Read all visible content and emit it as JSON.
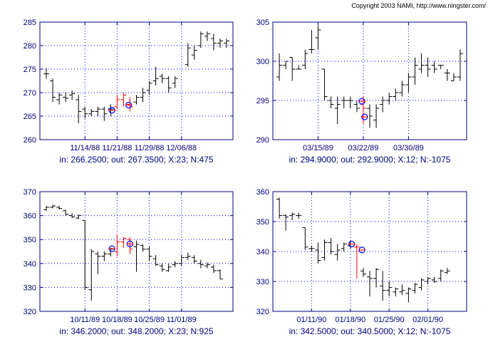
{
  "copyright": "Copyright 2003 NAMI, http://www.ningster.com/",
  "colors": {
    "axis": "#00007f",
    "grid": "#0000ff",
    "bar": "#000000",
    "trade": "#ff0000",
    "marker": "#0000ff"
  },
  "chart_data": [
    {
      "type": "ohlc",
      "caption": "in: 266.2500; out: 267.3500; X:23; N:475",
      "ylim": [
        260,
        285
      ],
      "yticks": [
        260,
        265,
        270,
        275,
        280,
        285
      ],
      "xlim": [
        0,
        30
      ],
      "xticks": [
        {
          "x": 7,
          "label": "11/14/88"
        },
        {
          "x": 12,
          "label": "11/21/88"
        },
        {
          "x": 17,
          "label": "11/29/88"
        },
        {
          "x": 22,
          "label": "12/06/88"
        }
      ],
      "grid": true,
      "bars": [
        {
          "x": 1,
          "h": 275.2,
          "l": 273.0,
          "o": 274.0,
          "c": 274.0
        },
        {
          "x": 2,
          "h": 273.0,
          "l": 268.0,
          "o": 272.5,
          "c": 269.0
        },
        {
          "x": 3,
          "h": 270.0,
          "l": 267.5,
          "o": 268.5,
          "c": 269.5
        },
        {
          "x": 4,
          "h": 270.0,
          "l": 268.0,
          "o": 269.0,
          "c": 268.8
        },
        {
          "x": 5,
          "h": 270.5,
          "l": 268.5,
          "o": 269.5,
          "c": 269.8
        },
        {
          "x": 6,
          "h": 269.5,
          "l": 263.5,
          "o": 268.5,
          "c": 266.0
        },
        {
          "x": 7,
          "h": 267.0,
          "l": 264.5,
          "o": 266.5,
          "c": 265.5
        },
        {
          "x": 8,
          "h": 266.5,
          "l": 265.0,
          "o": 265.5,
          "c": 266.0
        },
        {
          "x": 9,
          "h": 267.0,
          "l": 265.0,
          "o": 266.0,
          "c": 266.5
        },
        {
          "x": 10,
          "h": 267.0,
          "l": 264.0,
          "o": 266.5,
          "c": 265.5
        },
        {
          "x": 11,
          "h": 267.5,
          "l": 265.0,
          "o": 266.5,
          "c": 266.5
        },
        {
          "x": 12,
          "h": 269.5,
          "l": 266.5,
          "o": 267.0,
          "c": 268.5,
          "trade": true
        },
        {
          "x": 13,
          "h": 270.0,
          "l": 267.0,
          "o": 268.5,
          "c": 269.5,
          "trade": true
        },
        {
          "x": 14,
          "h": 269.0,
          "l": 266.0,
          "o": 267.5,
          "c": 267.0,
          "trade": true
        },
        {
          "x": 15,
          "h": 269.5,
          "l": 267.5,
          "o": 268.0,
          "c": 269.0
        },
        {
          "x": 16,
          "h": 271.0,
          "l": 268.0,
          "o": 269.0,
          "c": 270.0
        },
        {
          "x": 17,
          "h": 272.5,
          "l": 269.5,
          "o": 270.5,
          "c": 272.0
        },
        {
          "x": 18,
          "h": 275.5,
          "l": 271.5,
          "o": 272.5,
          "c": 273.0
        },
        {
          "x": 19,
          "h": 274.0,
          "l": 272.0,
          "o": 273.5,
          "c": 273.0
        },
        {
          "x": 20,
          "h": 273.5,
          "l": 270.0,
          "o": 273.0,
          "c": 271.0
        },
        {
          "x": 21,
          "h": 273.5,
          "l": 271.0,
          "o": 272.0,
          "c": 273.0
        },
        {
          "x": 23,
          "h": 280.5,
          "l": 275.5,
          "o": 276.0,
          "c": 279.5
        },
        {
          "x": 24,
          "h": 280.0,
          "l": 277.0,
          "o": 278.0,
          "c": 279.0
        },
        {
          "x": 25,
          "h": 283.0,
          "l": 279.5,
          "o": 280.0,
          "c": 282.5
        },
        {
          "x": 26,
          "h": 283.0,
          "l": 281.0,
          "o": 282.0,
          "c": 282.5
        },
        {
          "x": 27,
          "h": 282.5,
          "l": 279.0,
          "o": 281.5,
          "c": 280.5
        },
        {
          "x": 28,
          "h": 281.5,
          "l": 279.5,
          "o": 280.5,
          "c": 281.0
        },
        {
          "x": 29,
          "h": 281.5,
          "l": 279.5,
          "o": 280.5,
          "c": 281.0
        }
      ],
      "markers": [
        {
          "x": 11.2,
          "y": 266.25
        },
        {
          "x": 13.8,
          "y": 267.35
        }
      ]
    },
    {
      "type": "ohlc",
      "caption": "in: 294.9000; out: 292.9000; X:12; N:-1075",
      "ylim": [
        290,
        305
      ],
      "yticks": [
        290,
        295,
        300,
        305
      ],
      "xlim": [
        0,
        30
      ],
      "xticks": [
        {
          "x": 7,
          "label": "03/15/89"
        },
        {
          "x": 14,
          "label": "03/22/89"
        },
        {
          "x": 21,
          "label": "03/30/89"
        }
      ],
      "grid": true,
      "bars": [
        {
          "x": 1,
          "h": 301.0,
          "l": 297.5,
          "o": 298.0,
          "c": 299.5
        },
        {
          "x": 2,
          "h": 300.0,
          "l": 299.0,
          "o": 299.5,
          "c": 300.0
        },
        {
          "x": 3,
          "h": 300.5,
          "l": 297.5,
          "o": 300.5,
          "c": 299.0
        },
        {
          "x": 4,
          "h": 299.5,
          "l": 299.0,
          "o": 299.0,
          "c": 299.0
        },
        {
          "x": 5,
          "h": 301.5,
          "l": 299.0,
          "o": 299.5,
          "c": 301.0
        },
        {
          "x": 6,
          "h": 304.0,
          "l": 301.0,
          "o": 301.5,
          "c": 301.5
        },
        {
          "x": 7,
          "h": 304.5,
          "l": 301.5,
          "o": 303.0,
          "c": 304.0
        },
        {
          "x": 8,
          "h": 299.0,
          "l": 295.0,
          "o": 299.0,
          "c": 295.5
        },
        {
          "x": 9,
          "h": 295.5,
          "l": 294.0,
          "o": 295.0,
          "c": 294.5
        },
        {
          "x": 10,
          "h": 295.5,
          "l": 292.0,
          "o": 294.0,
          "c": 294.5
        },
        {
          "x": 11,
          "h": 295.5,
          "l": 294.0,
          "o": 295.0,
          "c": 295.0
        },
        {
          "x": 12,
          "h": 295.5,
          "l": 294.0,
          "o": 295.0,
          "c": 295.0
        },
        {
          "x": 13,
          "h": 295.0,
          "l": 293.5,
          "o": 294.5,
          "c": 294.0
        },
        {
          "x": 14,
          "h": 295.5,
          "l": 292.0,
          "o": 294.5,
          "c": 294.0,
          "trade": true
        },
        {
          "x": 15,
          "h": 294.5,
          "l": 291.5,
          "o": 294.0,
          "c": 293.0
        },
        {
          "x": 16,
          "h": 294.5,
          "l": 291.5,
          "o": 292.5,
          "c": 294.0
        },
        {
          "x": 17,
          "h": 295.5,
          "l": 293.5,
          "o": 294.5,
          "c": 295.0
        },
        {
          "x": 18,
          "h": 296.0,
          "l": 294.5,
          "o": 295.0,
          "c": 295.5
        },
        {
          "x": 19,
          "h": 296.5,
          "l": 295.0,
          "o": 295.5,
          "c": 296.0
        },
        {
          "x": 20,
          "h": 297.5,
          "l": 295.5,
          "o": 296.0,
          "c": 297.0
        },
        {
          "x": 21,
          "h": 298.5,
          "l": 296.0,
          "o": 297.0,
          "c": 298.0
        },
        {
          "x": 22,
          "h": 300.5,
          "l": 297.0,
          "o": 298.0,
          "c": 299.5
        },
        {
          "x": 23,
          "h": 301.0,
          "l": 298.5,
          "o": 299.0,
          "c": 299.5
        },
        {
          "x": 24,
          "h": 300.5,
          "l": 298.0,
          "o": 299.5,
          "c": 299.0
        },
        {
          "x": 25,
          "h": 300.0,
          "l": 298.5,
          "o": 299.5,
          "c": 299.0
        },
        {
          "x": 26,
          "h": 299.5,
          "l": 299.0,
          "o": 299.5,
          "c": 299.5
        },
        {
          "x": 27,
          "h": 299.0,
          "l": 297.5,
          "o": 298.5,
          "c": 298.5
        },
        {
          "x": 28,
          "h": 298.5,
          "l": 297.5,
          "o": 297.5,
          "c": 298.0
        },
        {
          "x": 29,
          "h": 301.5,
          "l": 297.5,
          "o": 298.0,
          "c": 301.0
        }
      ],
      "markers": [
        {
          "x": 13.8,
          "y": 294.9
        },
        {
          "x": 14.2,
          "y": 292.9
        }
      ]
    },
    {
      "type": "ohlc",
      "caption": "in: 346.2000; out: 348.2000; X:23; N:925",
      "ylim": [
        320,
        370
      ],
      "yticks": [
        320,
        330,
        340,
        350,
        360,
        370
      ],
      "xlim": [
        0,
        30
      ],
      "xticks": [
        {
          "x": 7,
          "label": "10/11/89"
        },
        {
          "x": 12,
          "label": "10/18/89"
        },
        {
          "x": 17,
          "label": "10/25/89"
        },
        {
          "x": 22,
          "label": "11/01/89"
        }
      ],
      "grid": true,
      "bars": [
        {
          "x": 1,
          "h": 364.0,
          "l": 362.0,
          "o": 362.5,
          "c": 363.5
        },
        {
          "x": 2,
          "h": 364.5,
          "l": 363.0,
          "o": 363.5,
          "c": 364.0
        },
        {
          "x": 3,
          "h": 364.0,
          "l": 362.5,
          "o": 363.5,
          "c": 363.0
        },
        {
          "x": 4,
          "h": 362.5,
          "l": 360.0,
          "o": 362.0,
          "c": 360.5
        },
        {
          "x": 5,
          "h": 361.0,
          "l": 359.0,
          "o": 360.0,
          "c": 359.5
        },
        {
          "x": 6,
          "h": 360.5,
          "l": 358.5,
          "o": 359.0,
          "c": 360.0
        },
        {
          "x": 7,
          "h": 358.0,
          "l": 329.0,
          "o": 358.0,
          "c": 330.0
        },
        {
          "x": 8,
          "h": 346.0,
          "l": 324.5,
          "o": 329.0,
          "c": 345.0
        },
        {
          "x": 9,
          "h": 345.0,
          "l": 335.5,
          "o": 344.0,
          "c": 343.0
        },
        {
          "x": 10,
          "h": 345.0,
          "l": 341.0,
          "o": 343.0,
          "c": 344.0
        },
        {
          "x": 11,
          "h": 346.5,
          "l": 343.0,
          "o": 344.0,
          "c": 346.0
        },
        {
          "x": 12,
          "h": 352.0,
          "l": 343.0,
          "o": 345.0,
          "c": 349.0,
          "trade": true
        },
        {
          "x": 13,
          "h": 351.0,
          "l": 346.5,
          "o": 349.0,
          "c": 350.5,
          "trade": true
        },
        {
          "x": 14,
          "h": 351.0,
          "l": 344.0,
          "o": 350.0,
          "c": 346.0,
          "trade": true
        },
        {
          "x": 15,
          "h": 349.5,
          "l": 336.5,
          "o": 347.0,
          "c": 348.0
        },
        {
          "x": 16,
          "h": 348.0,
          "l": 345.0,
          "o": 347.5,
          "c": 346.0
        },
        {
          "x": 17,
          "h": 347.0,
          "l": 341.0,
          "o": 346.0,
          "c": 343.0
        },
        {
          "x": 18,
          "h": 343.5,
          "l": 339.0,
          "o": 342.0,
          "c": 339.5
        },
        {
          "x": 19,
          "h": 340.0,
          "l": 336.5,
          "o": 339.0,
          "c": 337.5
        },
        {
          "x": 20,
          "h": 340.0,
          "l": 336.5,
          "o": 337.0,
          "c": 338.5
        },
        {
          "x": 21,
          "h": 341.0,
          "l": 338.5,
          "o": 339.5,
          "c": 340.0
        },
        {
          "x": 22,
          "h": 343.5,
          "l": 339.0,
          "o": 340.0,
          "c": 342.5
        },
        {
          "x": 23,
          "h": 344.5,
          "l": 341.5,
          "o": 342.5,
          "c": 343.0
        },
        {
          "x": 24,
          "h": 343.5,
          "l": 340.0,
          "o": 342.5,
          "c": 341.0
        },
        {
          "x": 25,
          "h": 341.5,
          "l": 338.0,
          "o": 340.0,
          "c": 339.5
        },
        {
          "x": 26,
          "h": 340.5,
          "l": 338.0,
          "o": 339.0,
          "c": 339.5
        },
        {
          "x": 27,
          "h": 339.5,
          "l": 336.0,
          "o": 338.5,
          "c": 337.0
        },
        {
          "x": 28,
          "h": 337.5,
          "l": 333.5,
          "o": 337.0,
          "c": 333.5
        }
      ],
      "markers": [
        {
          "x": 11.2,
          "y": 346.2
        },
        {
          "x": 14.0,
          "y": 348.2
        }
      ]
    },
    {
      "type": "ohlc",
      "caption": "in: 342.5000; out: 340.5000; X:12; N:-1075",
      "ylim": [
        320,
        360
      ],
      "yticks": [
        320,
        330,
        340,
        350,
        360
      ],
      "xlim": [
        0,
        30
      ],
      "xticks": [
        {
          "x": 6,
          "label": "01/11/90"
        },
        {
          "x": 12,
          "label": "01/18/90"
        },
        {
          "x": 18,
          "label": "01/25/90"
        },
        {
          "x": 24,
          "label": "02/01/90"
        }
      ],
      "grid": true,
      "bars": [
        {
          "x": 1,
          "h": 358.0,
          "l": 351.0,
          "o": 357.5,
          "c": 352.0
        },
        {
          "x": 2,
          "h": 352.5,
          "l": 347.0,
          "o": 352.0,
          "c": 351.5
        },
        {
          "x": 3,
          "h": 353.0,
          "l": 350.5,
          "o": 352.0,
          "c": 352.5
        },
        {
          "x": 4,
          "h": 353.0,
          "l": 351.0,
          "o": 352.0,
          "c": 352.0
        },
        {
          "x": 5,
          "h": 348.0,
          "l": 340.5,
          "o": 348.0,
          "c": 341.5
        },
        {
          "x": 6,
          "h": 342.0,
          "l": 340.0,
          "o": 341.0,
          "c": 341.0
        },
        {
          "x": 7,
          "h": 343.0,
          "l": 336.0,
          "o": 340.5,
          "c": 337.0
        },
        {
          "x": 8,
          "h": 344.0,
          "l": 337.0,
          "o": 338.0,
          "c": 343.0
        },
        {
          "x": 9,
          "h": 344.5,
          "l": 339.0,
          "o": 343.0,
          "c": 340.0
        },
        {
          "x": 10,
          "h": 342.5,
          "l": 337.0,
          "o": 339.0,
          "c": 340.5
        },
        {
          "x": 11,
          "h": 343.0,
          "l": 340.0,
          "o": 341.0,
          "c": 342.5
        },
        {
          "x": 12,
          "h": 343.5,
          "l": 341.0,
          "o": 342.0,
          "c": 342.5
        },
        {
          "x": 13,
          "h": 342.5,
          "l": 331.0,
          "o": 341.5,
          "c": 341.5,
          "trade": true
        },
        {
          "x": 14,
          "h": 334.5,
          "l": 331.5,
          "o": 333.5,
          "c": 332.5
        },
        {
          "x": 15,
          "h": 333.5,
          "l": 325.0,
          "o": 331.5,
          "c": 331.0
        },
        {
          "x": 16,
          "h": 334.5,
          "l": 328.0,
          "o": 331.0,
          "c": 334.0
        },
        {
          "x": 17,
          "h": 333.5,
          "l": 323.5,
          "o": 328.5,
          "c": 327.0
        },
        {
          "x": 18,
          "h": 330.0,
          "l": 325.0,
          "o": 327.0,
          "c": 328.0
        },
        {
          "x": 19,
          "h": 328.0,
          "l": 325.0,
          "o": 326.5,
          "c": 327.5
        },
        {
          "x": 20,
          "h": 329.0,
          "l": 325.5,
          "o": 326.5,
          "c": 327.0
        },
        {
          "x": 21,
          "h": 328.0,
          "l": 323.0,
          "o": 326.0,
          "c": 327.5
        },
        {
          "x": 22,
          "h": 329.5,
          "l": 326.0,
          "o": 327.0,
          "c": 329.0
        },
        {
          "x": 23,
          "h": 331.0,
          "l": 327.0,
          "o": 328.0,
          "c": 330.5
        },
        {
          "x": 24,
          "h": 331.5,
          "l": 329.0,
          "o": 330.0,
          "c": 331.0
        },
        {
          "x": 25,
          "h": 331.5,
          "l": 329.5,
          "o": 330.5,
          "c": 330.0
        },
        {
          "x": 26,
          "h": 334.0,
          "l": 330.0,
          "o": 331.0,
          "c": 333.5
        },
        {
          "x": 27,
          "h": 334.5,
          "l": 332.5,
          "o": 333.0,
          "c": 333.5
        }
      ],
      "markers": [
        {
          "x": 12.2,
          "y": 342.5
        },
        {
          "x": 13.8,
          "y": 340.5
        }
      ]
    }
  ]
}
